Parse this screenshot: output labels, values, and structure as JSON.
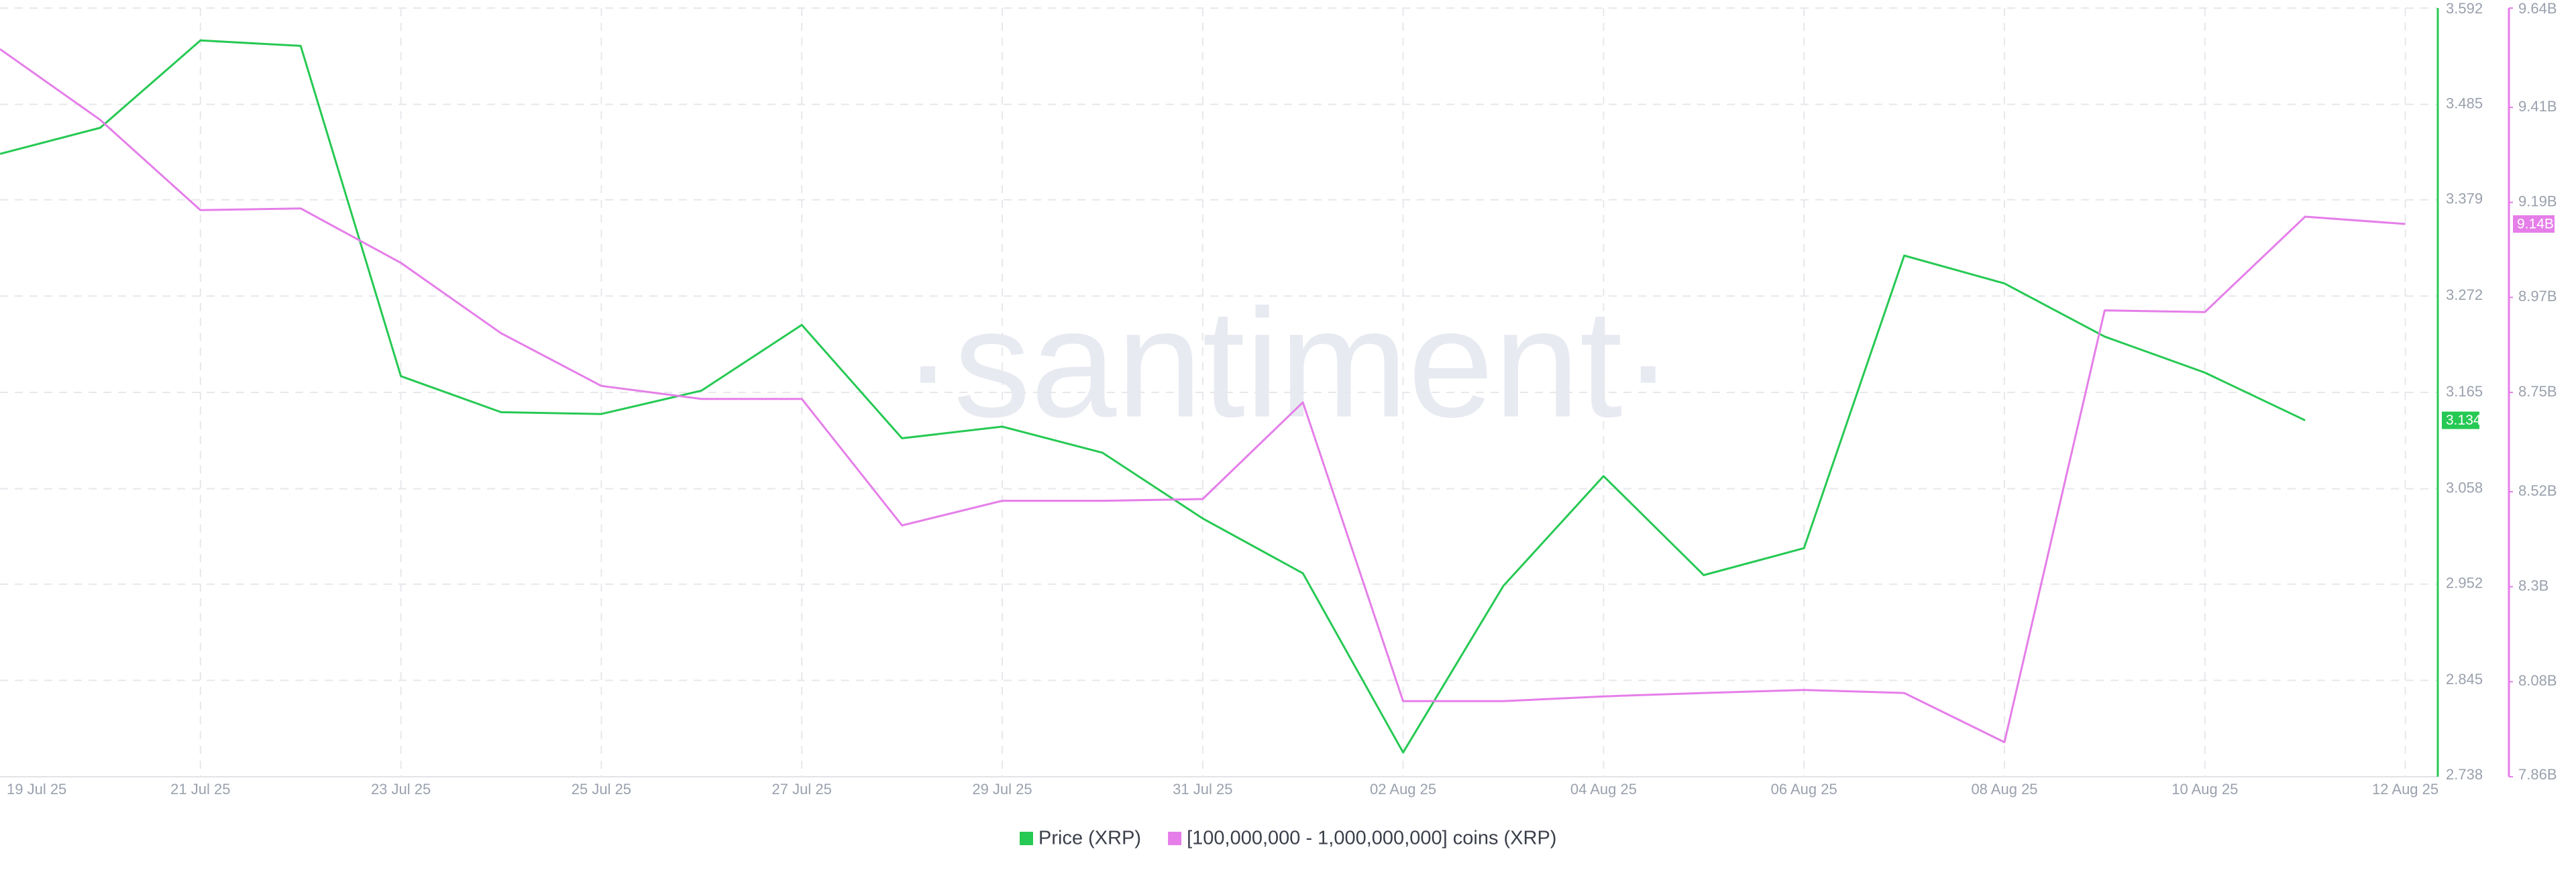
{
  "chart_data": {
    "type": "line",
    "watermark": "·santiment·",
    "categories": [
      "19 Jul 25",
      null,
      "21 Jul 25",
      null,
      "23 Jul 25",
      null,
      "25 Jul 25",
      null,
      "27 Jul 25",
      null,
      "29 Jul 25",
      null,
      "31 Jul 25",
      null,
      "02 Aug 25",
      null,
      "04 Aug 25",
      null,
      "06 Aug 25",
      null,
      "08 Aug 25",
      null,
      "10 Aug 25",
      null,
      "12 Aug 25"
    ],
    "series": [
      {
        "name": "Price (XRP)",
        "color": "#26c953",
        "axis": "y",
        "values": [
          3.43,
          3.459,
          3.556,
          3.55,
          3.183,
          3.143,
          3.141,
          3.167,
          3.24,
          3.114,
          3.127,
          3.098,
          3.025,
          2.964,
          2.765,
          2.95,
          3.072,
          2.962,
          2.992,
          3.317,
          3.286,
          3.227,
          3.187,
          3.134,
          null
        ]
      },
      {
        "name": "[100,000,000 - 1,000,000,000] coins (XRP)",
        "color": "#e57ee9",
        "axis": "y2",
        "values": [
          9545000000,
          9381000000,
          9172000000,
          9176000000,
          9050000000,
          8887000000,
          8765000000,
          8735000000,
          8735000000,
          8442000000,
          8499000000,
          8499000000,
          8503000000,
          8727000000,
          8035000000,
          8035000000,
          8046000000,
          8054000000,
          8061000000,
          8054000000,
          7940000000,
          8940000000,
          8936000000,
          9157000000,
          9140000000
        ],
        "value_labels": [
          null,
          null,
          null,
          null,
          null,
          null,
          null,
          null,
          null,
          null,
          null,
          null,
          null,
          null,
          null,
          null,
          null,
          null,
          null,
          null,
          null,
          null,
          null,
          null,
          "9.14B"
        ]
      }
    ],
    "ylim": [
      2.738,
      3.592
    ],
    "yticks": [
      2.738,
      2.845,
      2.952,
      3.058,
      3.165,
      3.272,
      3.379,
      3.485,
      3.592
    ],
    "y2lim": [
      7860000000,
      9640000000
    ],
    "y2ticks": [
      {
        "value": 7860000000,
        "label": "7.86B"
      },
      {
        "value": 8080000000,
        "label": "8.08B"
      },
      {
        "value": 8300000000,
        "label": "8.3B"
      },
      {
        "value": 8520000000,
        "label": "8.52B"
      },
      {
        "value": 8750000000,
        "label": "8.75B"
      },
      {
        "value": 8970000000,
        "label": "8.97B"
      },
      {
        "value": 9190000000,
        "label": "9.19B"
      },
      {
        "value": 9410000000,
        "label": "9.41B"
      },
      {
        "value": 9640000000,
        "label": "9.64B"
      }
    ],
    "grid": true
  }
}
